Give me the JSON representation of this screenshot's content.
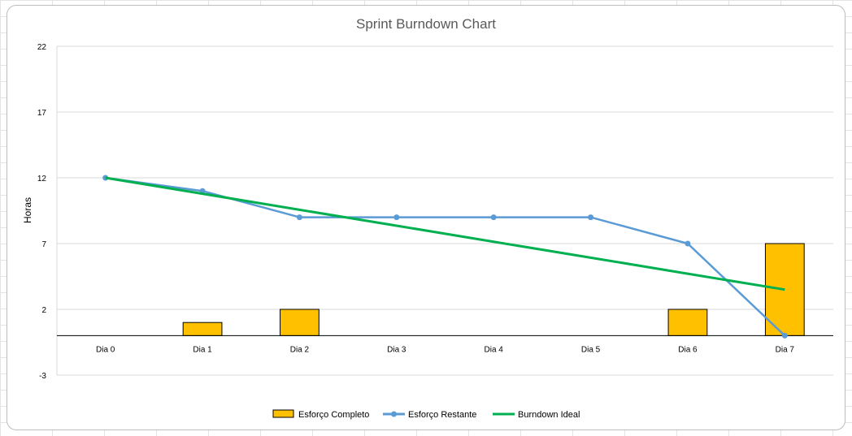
{
  "chart_data": {
    "type": "bar",
    "title": "Sprint Burndown Chart",
    "xlabel": "",
    "ylabel": "Horas",
    "categories": [
      "Dia 0",
      "Dia 1",
      "Dia 2",
      "Dia 3",
      "Dia 4",
      "Dia 5",
      "Dia 6",
      "Dia 7"
    ],
    "ylim": [
      -3,
      22
    ],
    "yticks": [
      22,
      17,
      12,
      7,
      2,
      -3
    ],
    "grid": true,
    "legend_position": "bottom",
    "series": [
      {
        "name": "Esforço Completo",
        "type": "bar",
        "color": "#FFC000",
        "values": [
          0,
          1,
          2,
          0,
          0,
          0,
          2,
          7
        ]
      },
      {
        "name": "Esforço Restante",
        "type": "line",
        "markers": true,
        "color": "#5B9BD5",
        "values": [
          12,
          11,
          9,
          9,
          9,
          9,
          7,
          0
        ]
      },
      {
        "name": "Burndown Ideal",
        "type": "line",
        "markers": false,
        "color": "#00B050",
        "values": [
          12,
          10.79,
          9.57,
          8.36,
          7.14,
          5.93,
          4.71,
          3.5
        ]
      }
    ]
  }
}
